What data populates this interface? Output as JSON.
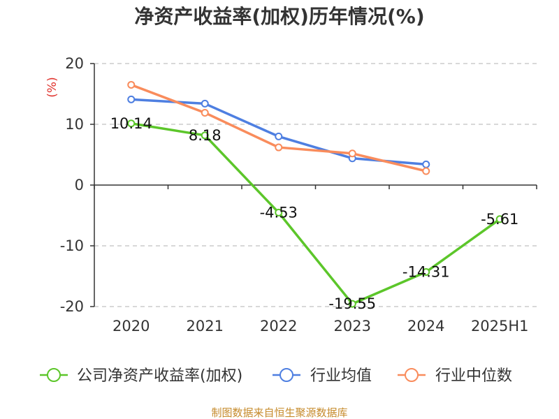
{
  "chart_data": {
    "type": "line",
    "title": "净资产收益率(加权)历年情况(%)",
    "ylabel": "(%)",
    "categories": [
      "2020",
      "2021",
      "2022",
      "2023",
      "2024",
      "2025H1"
    ],
    "ylim": [
      -20,
      20
    ],
    "yticks": [
      20,
      10,
      0,
      -10,
      -20
    ],
    "grid": true,
    "legend_position": "bottom",
    "series": [
      {
        "name": "公司净资产收益率(加权)",
        "color": "#5cc62a",
        "values": [
          10.14,
          8.18,
          -4.53,
          -19.55,
          -14.31,
          -5.61
        ],
        "labels": [
          "10.14",
          "8.18",
          "-4.53",
          "-19.55",
          "-14.31",
          "-5.61"
        ]
      },
      {
        "name": "行业均值",
        "color": "#4e7fe1",
        "values": [
          14.1,
          13.4,
          8.0,
          4.4,
          3.4,
          null
        ]
      },
      {
        "name": "行业中位数",
        "color": "#f98c5c",
        "values": [
          16.5,
          11.9,
          6.2,
          5.2,
          2.3,
          null
        ]
      }
    ]
  },
  "source": "制图数据来自恒生聚源数据库"
}
